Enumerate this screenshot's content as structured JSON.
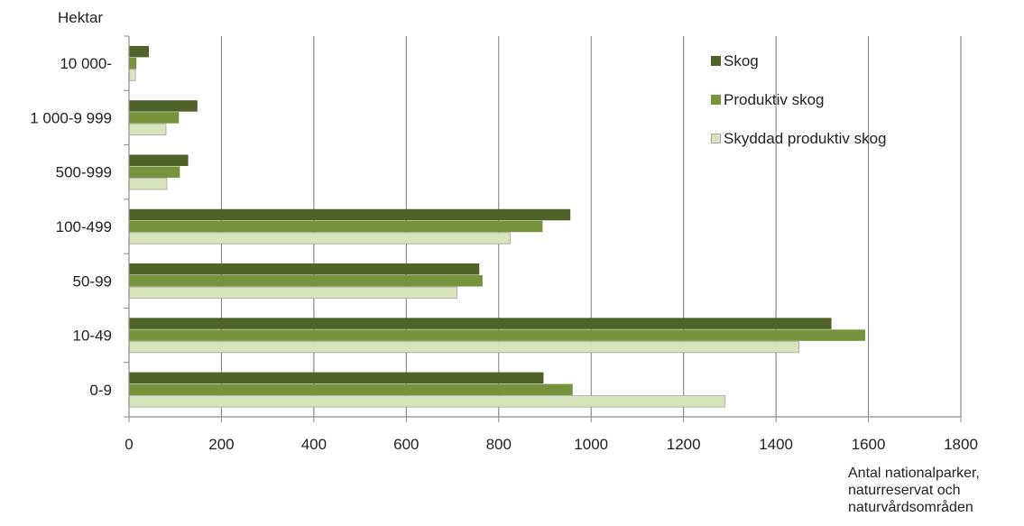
{
  "chart_data": {
    "type": "bar",
    "orientation": "horizontal",
    "ylabel": "Hektar",
    "xlabel": "Antal nationalparker,\nnaturreservat och\nnaturvårdsområden",
    "categories": [
      "10 000-",
      "1 000-9 999",
      "500-999",
      "100-499",
      "50-99",
      "10-49",
      "0-9"
    ],
    "series": [
      {
        "name": "Skog",
        "color": "#4f6228",
        "values": [
          43,
          148,
          128,
          955,
          758,
          1520,
          897
        ]
      },
      {
        "name": "Produktiv skog",
        "color": "#77933c",
        "values": [
          16,
          108,
          110,
          895,
          765,
          1593,
          960
        ]
      },
      {
        "name": "Skyddad produktiv skog",
        "color": "#d7e4bd",
        "values": [
          14,
          80,
          82,
          825,
          710,
          1450,
          1290
        ]
      }
    ],
    "xlim": [
      0,
      1800
    ],
    "xticks": [
      "0",
      "200",
      "400",
      "600",
      "800",
      "1000",
      "1200",
      "1400",
      "1600",
      "1800"
    ],
    "grid": true,
    "legend_position": "top-right"
  }
}
